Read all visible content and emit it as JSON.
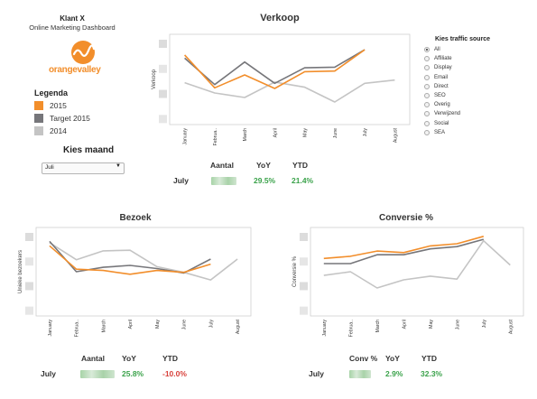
{
  "header": {
    "client": "Klant X",
    "subtitle": "Online Marketing Dashboard",
    "logo_text": "orangevalley"
  },
  "legend": {
    "title": "Legenda",
    "items": [
      {
        "label": "2015",
        "color": "#f28e2b"
      },
      {
        "label": "Target 2015",
        "color": "#76767a"
      },
      {
        "label": "2014",
        "color": "#c4c4c4"
      }
    ]
  },
  "month_filter": {
    "label": "Kies maand",
    "value": "Juli"
  },
  "traffic_source": {
    "title": "Kies traffic source",
    "options": [
      "All",
      "Affiliate",
      "Display",
      "Email",
      "Direct",
      "SEO",
      "Overig",
      "Verwijzend",
      "Social",
      "SEA"
    ],
    "selected": "All"
  },
  "charts": {
    "verkoop": {
      "title": "Verkoop",
      "ylabel": "Verkoop",
      "months": [
        "January",
        "Februa..",
        "March",
        "April",
        "May",
        "June",
        "July",
        "August"
      ],
      "series": [
        {
          "color": "#c4c4c4",
          "values": [
            6.5,
            4.9,
            4.2,
            6.6,
            5.8,
            3.5,
            6.4,
            6.9
          ]
        },
        {
          "color": "#76767a",
          "values": [
            10.3,
            6.2,
            9.7,
            6.4,
            8.8,
            8.9,
            11.6
          ]
        },
        {
          "color": "#f28e2b",
          "values": [
            10.8,
            5.7,
            7.7,
            5.6,
            8.2,
            8.3,
            11.6
          ]
        }
      ],
      "ylim": [
        0,
        14
      ]
    },
    "bezoek": {
      "title": "Bezoek",
      "ylabel": "Unieke bezoekers",
      "months": [
        "January",
        "Februa..",
        "March",
        "April",
        "May",
        "June",
        "July",
        "August"
      ],
      "series": [
        {
          "color": "#c4c4c4",
          "values": [
            11.6,
            8.9,
            10.3,
            10.4,
            7.8,
            6.9,
            5.7,
            9.0
          ]
        },
        {
          "color": "#76767a",
          "values": [
            11.8,
            7.0,
            7.7,
            8.0,
            7.5,
            6.8,
            9.0
          ]
        },
        {
          "color": "#f28e2b",
          "values": [
            11.1,
            7.4,
            7.2,
            6.6,
            7.2,
            6.9,
            8.2
          ]
        }
      ],
      "ylim": [
        0,
        14
      ]
    },
    "conversie": {
      "title": "Conversie %",
      "ylabel": "Conversie %",
      "months": [
        "January",
        "Februa..",
        "March",
        "April",
        "May",
        "June",
        "July",
        "August"
      ],
      "series": [
        {
          "color": "#c4c4c4",
          "values": [
            5.5,
            6.0,
            3.8,
            4.9,
            5.4,
            5.0,
            10.2,
            6.9
          ]
        },
        {
          "color": "#76767a",
          "values": [
            7.1,
            7.1,
            8.3,
            8.3,
            9.1,
            9.4,
            10.4
          ]
        },
        {
          "color": "#f28e2b",
          "values": [
            7.8,
            8.1,
            8.8,
            8.6,
            9.5,
            9.8,
            10.8
          ]
        }
      ],
      "ylim": [
        0,
        12
      ]
    }
  },
  "kpis": {
    "verkoop": {
      "row": "July",
      "headers": [
        "Aantal",
        "YoY",
        "YTD"
      ],
      "yoy": "29.5%",
      "ytd": "21.4%"
    },
    "bezoek": {
      "row": "July",
      "headers": [
        "Aantal",
        "YoY",
        "YTD"
      ],
      "yoy": "25.8%",
      "ytd": "-10.0%"
    },
    "conversie": {
      "row": "July",
      "headers": [
        "Conv %",
        "YoY",
        "YTD"
      ],
      "yoy": "2.9%",
      "ytd": "32.3%"
    }
  }
}
